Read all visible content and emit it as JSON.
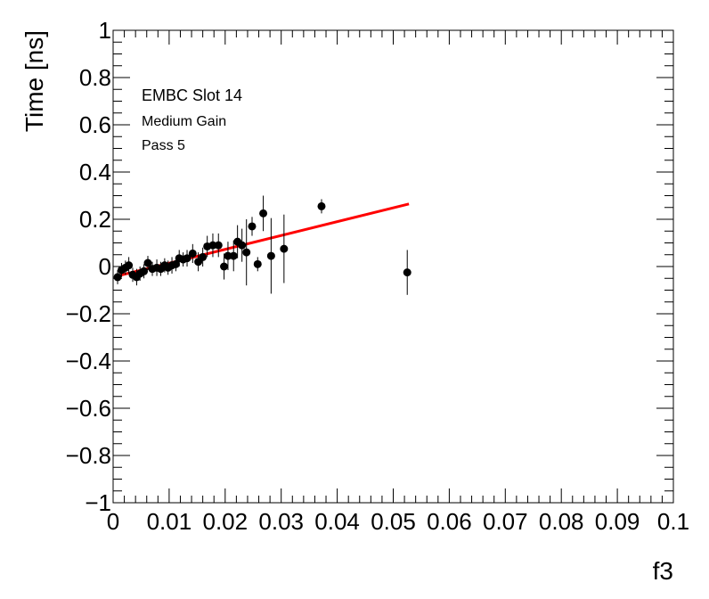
{
  "chart_data": {
    "type": "scatter",
    "xlabel": "f3",
    "ylabel": "Time [ns]",
    "xlim": [
      0,
      0.1
    ],
    "ylim": [
      -1,
      1
    ],
    "x_ticks": [
      "0",
      "0.01",
      "0.02",
      "0.03",
      "0.04",
      "0.05",
      "0.06",
      "0.07",
      "0.08",
      "0.09",
      "0.1"
    ],
    "y_ticks": [
      "−1",
      "−0.8",
      "−0.6",
      "−0.4",
      "−0.2",
      "0",
      "0.2",
      "0.4",
      "0.6",
      "0.8",
      "1"
    ],
    "grid": false,
    "annotations": [
      "EMBC Slot 14",
      "Medium Gain",
      "Pass 5"
    ],
    "series": [
      {
        "kind": "points-with-errors",
        "color": "#000000",
        "points": [
          {
            "x": 0.0008,
            "y": -0.045,
            "err": 0.03
          },
          {
            "x": 0.0015,
            "y": -0.015,
            "err": 0.03
          },
          {
            "x": 0.0022,
            "y": -0.005,
            "err": 0.03
          },
          {
            "x": 0.0028,
            "y": 0.005,
            "err": 0.035
          },
          {
            "x": 0.0035,
            "y": -0.035,
            "err": 0.03
          },
          {
            "x": 0.0042,
            "y": -0.045,
            "err": 0.035
          },
          {
            "x": 0.0048,
            "y": -0.03,
            "err": 0.03
          },
          {
            "x": 0.0055,
            "y": -0.02,
            "err": 0.03
          },
          {
            "x": 0.0062,
            "y": 0.015,
            "err": 0.03
          },
          {
            "x": 0.007,
            "y": -0.01,
            "err": 0.03
          },
          {
            "x": 0.0078,
            "y": -0.005,
            "err": 0.035
          },
          {
            "x": 0.0085,
            "y": -0.01,
            "err": 0.03
          },
          {
            "x": 0.0092,
            "y": 0.005,
            "err": 0.03
          },
          {
            "x": 0.0098,
            "y": -0.005,
            "err": 0.03
          },
          {
            "x": 0.0105,
            "y": 0.005,
            "err": 0.035
          },
          {
            "x": 0.0112,
            "y": 0.01,
            "err": 0.03
          },
          {
            "x": 0.0118,
            "y": 0.035,
            "err": 0.035
          },
          {
            "x": 0.0125,
            "y": 0.03,
            "err": 0.03
          },
          {
            "x": 0.0132,
            "y": 0.035,
            "err": 0.035
          },
          {
            "x": 0.0142,
            "y": 0.055,
            "err": 0.04
          },
          {
            "x": 0.0152,
            "y": 0.02,
            "err": 0.04
          },
          {
            "x": 0.016,
            "y": 0.04,
            "err": 0.04
          },
          {
            "x": 0.0168,
            "y": 0.085,
            "err": 0.045
          },
          {
            "x": 0.0178,
            "y": 0.09,
            "err": 0.05
          },
          {
            "x": 0.0188,
            "y": 0.09,
            "err": 0.05
          },
          {
            "x": 0.0198,
            "y": 0.0,
            "err": 0.055
          },
          {
            "x": 0.0205,
            "y": 0.045,
            "err": 0.06
          },
          {
            "x": 0.0215,
            "y": 0.045,
            "err": 0.065
          },
          {
            "x": 0.0222,
            "y": 0.105,
            "err": 0.07
          },
          {
            "x": 0.023,
            "y": 0.09,
            "err": 0.07
          },
          {
            "x": 0.0238,
            "y": 0.06,
            "err": 0.14
          },
          {
            "x": 0.0248,
            "y": 0.17,
            "err": 0.04
          },
          {
            "x": 0.0258,
            "y": 0.01,
            "err": 0.03
          },
          {
            "x": 0.0268,
            "y": 0.225,
            "err": 0.075
          },
          {
            "x": 0.0282,
            "y": 0.045,
            "err": 0.16
          },
          {
            "x": 0.0305,
            "y": 0.075,
            "err": 0.145
          },
          {
            "x": 0.0372,
            "y": 0.255,
            "err": 0.03
          },
          {
            "x": 0.0525,
            "y": -0.025,
            "err": 0.095
          }
        ]
      },
      {
        "kind": "fit-line",
        "color": "#ff0000",
        "x": [
          0.0008,
          0.0528
        ],
        "y": [
          -0.04,
          0.265
        ]
      }
    ]
  }
}
